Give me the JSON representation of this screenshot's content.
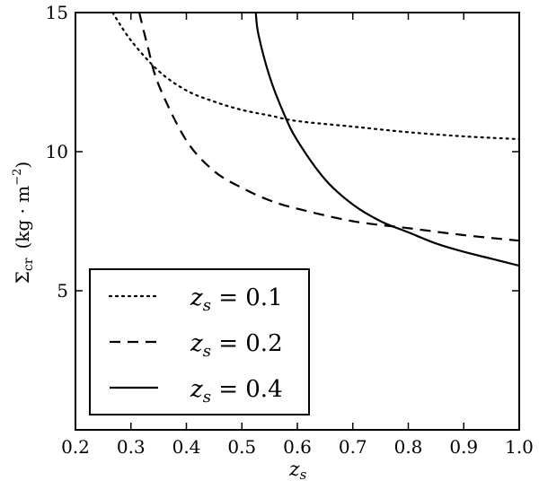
{
  "chart_data": {
    "type": "line",
    "xlabel": "z_s",
    "ylabel": "Σcr (kg · m−2)",
    "xlim": [
      0.2,
      1.0
    ],
    "ylim": [
      0,
      15
    ],
    "grid": false,
    "legend_placement": "bottom-left",
    "x_ticks": [
      "0.2",
      "0.3",
      "0.4",
      "0.5",
      "0.6",
      "0.7",
      "0.8",
      "0.9",
      "1.0"
    ],
    "y_ticks": [
      "5",
      "10",
      "15"
    ],
    "series": [
      {
        "name": "z_s = 0.1",
        "style": "dotted",
        "color": "#000000",
        "x": [
          0.267,
          0.3,
          0.35,
          0.4,
          0.45,
          0.5,
          0.55,
          0.6,
          0.7,
          0.8,
          0.9,
          1.0
        ],
        "y": [
          15.0,
          14.0,
          12.9,
          12.2,
          11.8,
          11.5,
          11.3,
          11.1,
          10.9,
          10.7,
          10.55,
          10.45
        ]
      },
      {
        "name": "z_s = 0.2",
        "style": "dashed",
        "color": "#000000",
        "x": [
          0.315,
          0.33,
          0.35,
          0.4,
          0.45,
          0.5,
          0.55,
          0.6,
          0.7,
          0.8,
          0.9,
          1.0
        ],
        "y": [
          15.0,
          13.8,
          12.4,
          10.4,
          9.3,
          8.7,
          8.25,
          7.95,
          7.5,
          7.25,
          7.0,
          6.8
        ]
      },
      {
        "name": "z_s = 0.4",
        "style": "solid",
        "color": "#000000",
        "x": [
          0.525,
          0.53,
          0.55,
          0.575,
          0.6,
          0.65,
          0.7,
          0.75,
          0.8,
          0.85,
          0.9,
          0.95,
          1.0
        ],
        "y": [
          15.0,
          14.2,
          12.7,
          11.4,
          10.4,
          9.0,
          8.1,
          7.5,
          7.1,
          6.7,
          6.4,
          6.15,
          5.9
        ]
      }
    ]
  },
  "legend": {
    "entries": [
      {
        "lhs": "z",
        "sub": "s",
        "rhs": " = 0.1"
      },
      {
        "lhs": "z",
        "sub": "s",
        "rhs": " = 0.2"
      },
      {
        "lhs": "z",
        "sub": "s",
        "rhs": " = 0.4"
      }
    ]
  },
  "axes": {
    "xlabel_main": "z",
    "xlabel_sub": "s",
    "ylabel_sigma": "Σ",
    "ylabel_sub": "cr",
    "ylabel_units_open": "(kg · m",
    "ylabel_units_sup": "−2",
    "ylabel_units_close": ")"
  }
}
